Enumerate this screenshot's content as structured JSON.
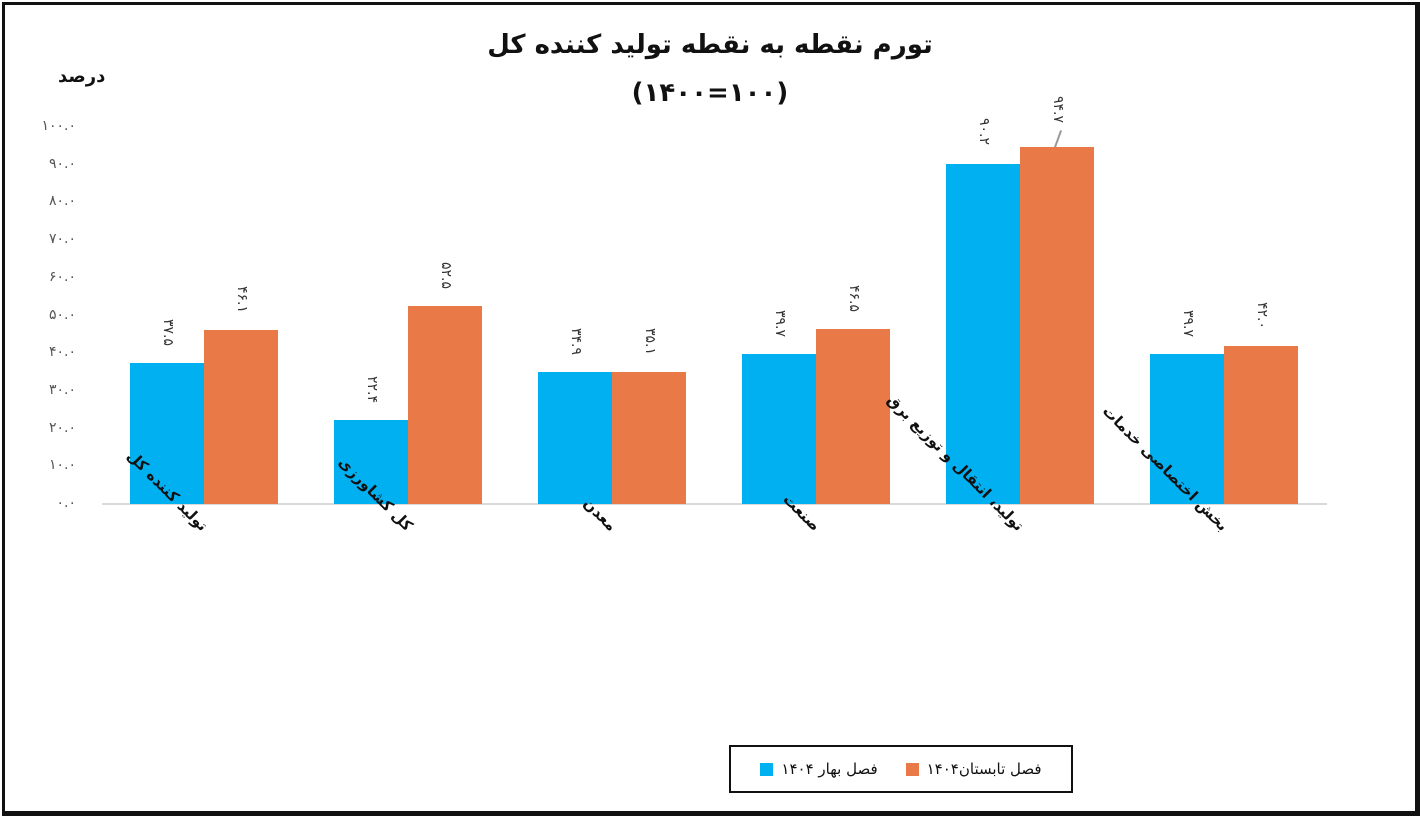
{
  "chart_data": {
    "type": "bar",
    "title": "تورم نقطه به نقطه تولید کننده کل",
    "subtitle": "(۱۴۰۰=۱۰۰)",
    "xlabel": "",
    "ylabel": "درصد",
    "ylim": [
      0,
      100
    ],
    "yticks": [
      0,
      10,
      20,
      30,
      40,
      50,
      60,
      70,
      80,
      90,
      100
    ],
    "ytick_labels": [
      "۰.۰",
      "۱۰.۰",
      "۲۰.۰",
      "۳۰.۰",
      "۴۰.۰",
      "۵۰.۰",
      "۶۰.۰",
      "۷۰.۰",
      "۸۰.۰",
      "۹۰.۰",
      "۱۰۰.۰"
    ],
    "grid": false,
    "legend_position": "bottom",
    "categories": [
      "تولید کننده کل",
      "کل کشاورزی",
      "معدن",
      "صنعت",
      "تولید، انتقال و توزیع برق",
      "بخش اختصاصی خدمات"
    ],
    "series": [
      {
        "name": "فصل بهار ۱۴۰۴",
        "color": "#00B0F0",
        "values": [
          37.5,
          22.4,
          34.9,
          39.7,
          90.2,
          39.7
        ],
        "labels": [
          "۳۷.۵",
          "۲۲.۴",
          "۳۴.۹",
          "۳۹.۷",
          "۹۰.۲",
          "۳۹.۷"
        ]
      },
      {
        "name": "فصل تابستان۱۴۰۴",
        "color": "#E97A47",
        "values": [
          46.1,
          52.5,
          35.1,
          46.5,
          94.7,
          42.0
        ],
        "labels": [
          "۴۶.۱",
          "۵۲.۵",
          "۳۵.۱",
          "۴۶.۵",
          "۹۴.۷",
          "۴۲.۰"
        ]
      }
    ]
  },
  "title_line1": "تورم نقطه به نقطه تولید کننده کل",
  "title_line2": "(۱۴۰۰=۱۰۰)",
  "y_unit": "درصد",
  "legend": {
    "items": [
      {
        "label": "فصل تابستان۱۴۰۴",
        "color": "#E97A47"
      },
      {
        "label": "فصل بهار ۱۴۰۴",
        "color": "#00B0F0"
      }
    ]
  }
}
